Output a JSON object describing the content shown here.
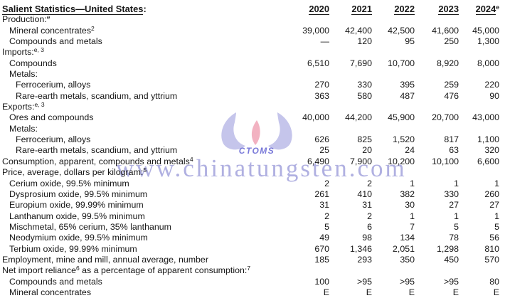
{
  "table": {
    "header": {
      "title": "Salient Statistics—United States",
      "title_suffix": ":",
      "years": [
        "2020",
        "2021",
        "2022",
        "2023",
        "2024"
      ],
      "last_year_superscript": "e"
    },
    "rows": [
      {
        "indent": 0,
        "parts": [
          [
            "t",
            "Production:"
          ],
          [
            "s",
            "e"
          ]
        ],
        "values": []
      },
      {
        "indent": 1,
        "parts": [
          [
            "t",
            "Mineral concentrates"
          ],
          [
            "s",
            "2"
          ]
        ],
        "values": [
          "39,000",
          "42,400",
          "42,500",
          "41,600",
          "45,000"
        ]
      },
      {
        "indent": 1,
        "parts": [
          [
            "t",
            "Compounds and metals"
          ]
        ],
        "values": [
          "—",
          "120",
          "95",
          "250",
          "1,300"
        ]
      },
      {
        "indent": 0,
        "parts": [
          [
            "t",
            "Imports:"
          ],
          [
            "s",
            "e, 3"
          ]
        ],
        "values": []
      },
      {
        "indent": 1,
        "parts": [
          [
            "t",
            "Compounds"
          ]
        ],
        "values": [
          "6,510",
          "7,690",
          "10,700",
          "8,920",
          "8,000"
        ]
      },
      {
        "indent": 1,
        "parts": [
          [
            "t",
            "Metals:"
          ]
        ],
        "values": []
      },
      {
        "indent": 2,
        "parts": [
          [
            "t",
            "Ferrocerium, alloys"
          ]
        ],
        "values": [
          "270",
          "330",
          "395",
          "259",
          "220"
        ]
      },
      {
        "indent": 2,
        "parts": [
          [
            "t",
            "Rare-earth metals, scandium, and yttrium"
          ]
        ],
        "values": [
          "363",
          "580",
          "487",
          "476",
          "90"
        ]
      },
      {
        "indent": 0,
        "parts": [
          [
            "t",
            "Exports:"
          ],
          [
            "s",
            "e, 3"
          ]
        ],
        "values": []
      },
      {
        "indent": 1,
        "parts": [
          [
            "t",
            "Ores and compounds"
          ]
        ],
        "values": [
          "40,000",
          "44,200",
          "45,900",
          "20,700",
          "43,000"
        ]
      },
      {
        "indent": 1,
        "parts": [
          [
            "t",
            "Metals:"
          ]
        ],
        "values": []
      },
      {
        "indent": 2,
        "parts": [
          [
            "t",
            "Ferrocerium, alloys"
          ]
        ],
        "values": [
          "626",
          "825",
          "1,520",
          "817",
          "1,100"
        ]
      },
      {
        "indent": 2,
        "parts": [
          [
            "t",
            "Rare-earth metals, scandium, and yttrium"
          ]
        ],
        "values": [
          "25",
          "20",
          "24",
          "63",
          "320"
        ]
      },
      {
        "indent": 0,
        "parts": [
          [
            "t",
            "Consumption, apparent, compounds and metals"
          ],
          [
            "s",
            "4"
          ]
        ],
        "values": [
          "6,490",
          "7,900",
          "10,200",
          "10,100",
          "6,600"
        ]
      },
      {
        "indent": 0,
        "parts": [
          [
            "t",
            "Price, average, dollars per kilogram:"
          ],
          [
            "s",
            "5"
          ]
        ],
        "values": []
      },
      {
        "indent": 1,
        "parts": [
          [
            "t",
            "Cerium oxide, 99.5% minimum"
          ]
        ],
        "values": [
          "2",
          "2",
          "1",
          "1",
          "1"
        ]
      },
      {
        "indent": 1,
        "parts": [
          [
            "t",
            "Dysprosium oxide, 99.5% minimum"
          ]
        ],
        "values": [
          "261",
          "410",
          "382",
          "330",
          "260"
        ]
      },
      {
        "indent": 1,
        "parts": [
          [
            "t",
            "Europium oxide, 99.99% minimum"
          ]
        ],
        "values": [
          "31",
          "31",
          "30",
          "27",
          "27"
        ]
      },
      {
        "indent": 1,
        "parts": [
          [
            "t",
            "Lanthanum oxide, 99.5% minimum"
          ]
        ],
        "values": [
          "2",
          "2",
          "1",
          "1",
          "1"
        ]
      },
      {
        "indent": 1,
        "parts": [
          [
            "t",
            "Mischmetal, 65% cerium, 35% lanthanum"
          ]
        ],
        "values": [
          "5",
          "6",
          "7",
          "5",
          "5"
        ]
      },
      {
        "indent": 1,
        "parts": [
          [
            "t",
            "Neodymium oxide, 99.5% minimum"
          ]
        ],
        "values": [
          "49",
          "98",
          "134",
          "78",
          "56"
        ]
      },
      {
        "indent": 1,
        "parts": [
          [
            "t",
            "Terbium oxide, 99.99% minimum"
          ]
        ],
        "values": [
          "670",
          "1,346",
          "2,051",
          "1,298",
          "810"
        ]
      },
      {
        "indent": 0,
        "parts": [
          [
            "t",
            "Employment, mine and mill, annual average, number"
          ]
        ],
        "values": [
          "185",
          "293",
          "350",
          "450",
          "570"
        ]
      },
      {
        "indent": 0,
        "parts": [
          [
            "t",
            "Net import reliance"
          ],
          [
            "s",
            "6"
          ],
          [
            "t",
            " as a percentage of apparent consumption:"
          ],
          [
            "s",
            "7"
          ]
        ],
        "values": []
      },
      {
        "indent": 1,
        "parts": [
          [
            "t",
            "Compounds and metals"
          ]
        ],
        "values": [
          "100",
          ">95",
          ">95",
          ">95",
          "80"
        ]
      },
      {
        "indent": 1,
        "parts": [
          [
            "t",
            "Mineral concentrates"
          ]
        ],
        "values": [
          "E",
          "E",
          "E",
          "E",
          "E"
        ]
      }
    ]
  },
  "watermark": {
    "url_text": "www.chinatungsten.com",
    "url_color": "#8080cf",
    "logo_text": "CTOMS",
    "logo_text_color": "#5a5ad0",
    "logo_petal_color": "#b7b7e6",
    "logo_flame_color": "#f0a4b6"
  }
}
